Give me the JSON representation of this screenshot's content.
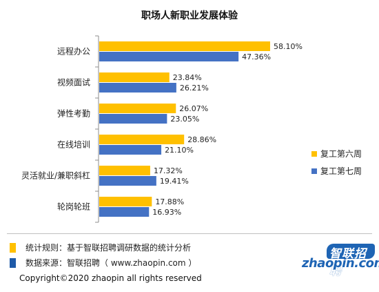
{
  "chart_data": {
    "type": "bar",
    "orientation": "horizontal",
    "title": "职场人新职业发展体验",
    "categories": [
      "远程办公",
      "视频面试",
      "弹性考勤",
      "在线培训",
      "灵活就业/兼职斜杠",
      "轮岗轮班"
    ],
    "series": [
      {
        "name": "复工第六周",
        "color": "#ffc000",
        "values": [
          58.1,
          23.84,
          26.07,
          28.86,
          17.32,
          17.88
        ]
      },
      {
        "name": "复工第七周",
        "color": "#4472c4",
        "values": [
          47.36,
          26.21,
          23.05,
          21.1,
          19.41,
          16.93
        ]
      }
    ],
    "value_suffix": "%",
    "xlim": [
      0,
      60
    ],
    "grid": false,
    "legend_position": "right"
  },
  "notes": [
    {
      "text": "统计规则：基于智联招聘调研数据的统计分析",
      "color": "#ffc000"
    },
    {
      "text": "数据来源：智联招聘（ www.zhaopin.com ）",
      "color": "#1e5aa8"
    }
  ],
  "logo": {
    "cn": "智联招聘",
    "en": "zhaopin.com"
  },
  "copyright": "Copyright©2020 zhaopin all rights reserved"
}
